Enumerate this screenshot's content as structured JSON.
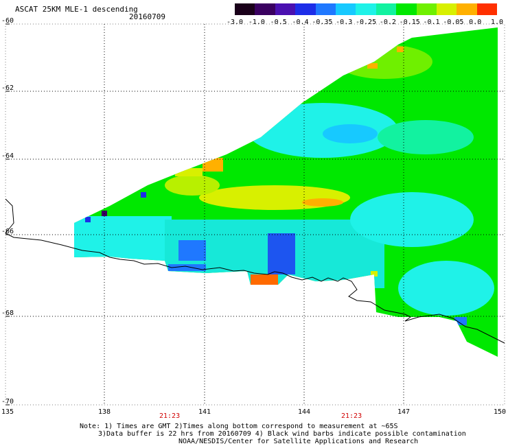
{
  "header": {
    "title": "ASCAT 25KM MLE-1 descending",
    "date": "20160709"
  },
  "colorbar": {
    "labels": [
      "-3.0",
      "-1.0",
      "-0.5",
      "-0.4",
      "-0.35",
      "-0.3",
      "-0.25",
      "-0.2",
      "-0.15",
      "-0.1",
      "-0.05",
      "0.0",
      "1.0"
    ],
    "colors": [
      "#1a001a",
      "#3a0060",
      "#4a10b0",
      "#1d2de8",
      "#1f78ff",
      "#17c9ff",
      "#1ff2e8",
      "#12f2a0",
      "#00e800",
      "#6ff000",
      "#d8f000",
      "#ffb000",
      "#ff3000"
    ]
  },
  "axes": {
    "y_labels": [
      "-60",
      "-62",
      "-64",
      "-66",
      "-68",
      "-70"
    ],
    "x_labels": [
      "135",
      "138",
      "141",
      "144",
      "147",
      "150"
    ],
    "time_labels": [
      "21:23",
      "21:23"
    ]
  },
  "notes": [
    "Note: 1) Times are GMT 2)Times along bottom correspond to measurement at ~65S",
    "3)Data buffer is 22 hrs from 20160709 4) Black wind barbs indicate possible contamination",
    "NOAA/NESDIS/Center for Satellite Applications and Research"
  ]
}
